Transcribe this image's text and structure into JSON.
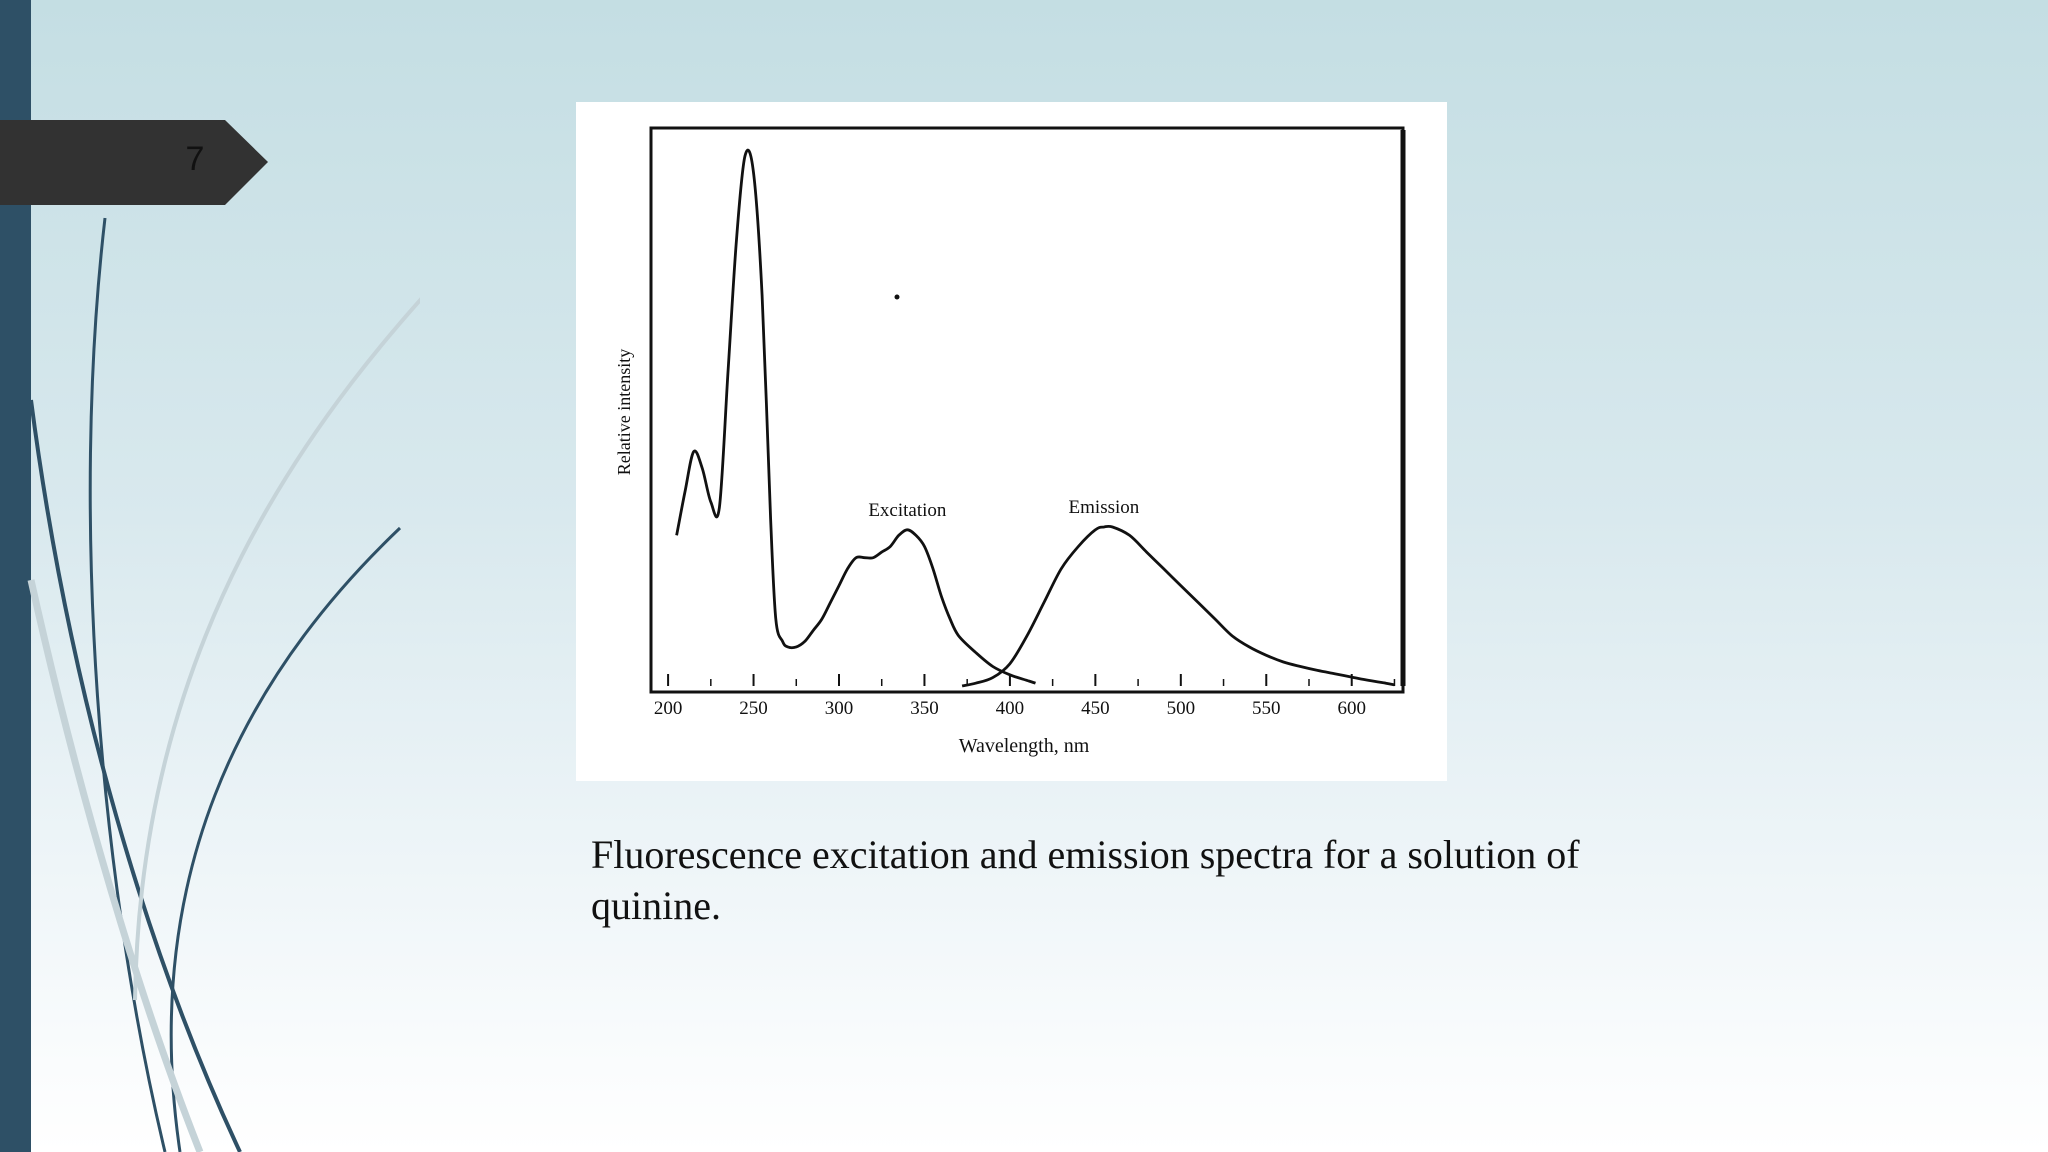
{
  "slide": {
    "number": "7",
    "caption": "Fluorescence excitation and emission spectra for a solution of quinine.",
    "colors": {
      "left_bar": "#2e5066",
      "number_tab": "#323232",
      "swoosh_dark": "#2e5066",
      "swoosh_light": "#c5d3d8"
    }
  },
  "chart_data": {
    "type": "line",
    "xlabel": "Wavelength, nm",
    "ylabel": "Relative intensity",
    "xlim": [
      190,
      630
    ],
    "ylim": [
      0,
      100
    ],
    "x_ticks": [
      200,
      250,
      300,
      350,
      400,
      450,
      500,
      550,
      600
    ],
    "grid": false,
    "series": [
      {
        "name": "Excitation",
        "x": [
          205,
          210,
          215,
          220,
          225,
          230,
          235,
          240,
          245,
          250,
          255,
          260,
          263,
          267,
          270,
          275,
          280,
          285,
          290,
          295,
          300,
          305,
          310,
          315,
          320,
          325,
          330,
          335,
          340,
          345,
          350,
          355,
          360,
          365,
          370,
          380,
          390,
          400,
          410,
          415
        ],
        "y": [
          27,
          35,
          42,
          39,
          33,
          32,
          56,
          80,
          95,
          92,
          70,
          30,
          12,
          8,
          7,
          7,
          8,
          10,
          12,
          15,
          18,
          21,
          23,
          23,
          23,
          24,
          25,
          27,
          28,
          27,
          25,
          21,
          16,
          12,
          9,
          6,
          3.5,
          2,
          1,
          0.5
        ]
      },
      {
        "name": "Emission",
        "x": [
          372,
          380,
          390,
          400,
          410,
          420,
          430,
          440,
          450,
          455,
          460,
          470,
          480,
          490,
          500,
          510,
          520,
          530,
          540,
          550,
          560,
          570,
          580,
          590,
          600,
          610,
          620,
          625
        ],
        "y": [
          0,
          0.5,
          1.5,
          4,
          9,
          15,
          21,
          25,
          28,
          28.5,
          28.5,
          27,
          24,
          21,
          18,
          15,
          12,
          9,
          7,
          5.5,
          4.3,
          3.5,
          2.8,
          2.2,
          1.6,
          1,
          0.5,
          0.2
        ]
      }
    ],
    "annotations": [
      "Excitation",
      "Emission"
    ]
  }
}
